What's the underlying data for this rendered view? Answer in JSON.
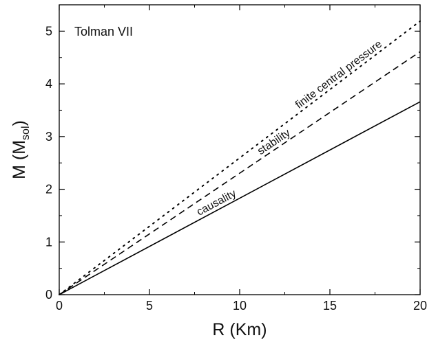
{
  "chart_data": {
    "type": "line",
    "title": "",
    "panel_label": "Tolman VII",
    "xlabel": "R (Km)",
    "ylabel": {
      "main": "M (M",
      "sub": "sol",
      "close": ")"
    },
    "xlim": [
      0,
      20
    ],
    "ylim": [
      0,
      5.5
    ],
    "xticks": [
      0,
      5,
      10,
      15,
      20
    ],
    "yticks": [
      0,
      1,
      2,
      3,
      4,
      5
    ],
    "grid": false,
    "legend": "none",
    "series": [
      {
        "name": "finite central pressure",
        "style": "dotted",
        "color": "#000000",
        "x": [
          0,
          20
        ],
        "y": [
          0,
          5.19
        ]
      },
      {
        "name": "stability",
        "style": "dashed",
        "color": "#000000",
        "x": [
          0,
          20
        ],
        "y": [
          0,
          4.61
        ]
      },
      {
        "name": "causality",
        "style": "solid",
        "color": "#000000",
        "x": [
          0,
          20
        ],
        "y": [
          0,
          3.66
        ]
      }
    ],
    "annotations": [
      {
        "text": "finite central pressure",
        "series": 0,
        "at_x": 15.6
      },
      {
        "text": "stability",
        "series": 1,
        "at_x": 12.0
      },
      {
        "text": "causality",
        "series": 2,
        "at_x": 8.8
      }
    ]
  }
}
